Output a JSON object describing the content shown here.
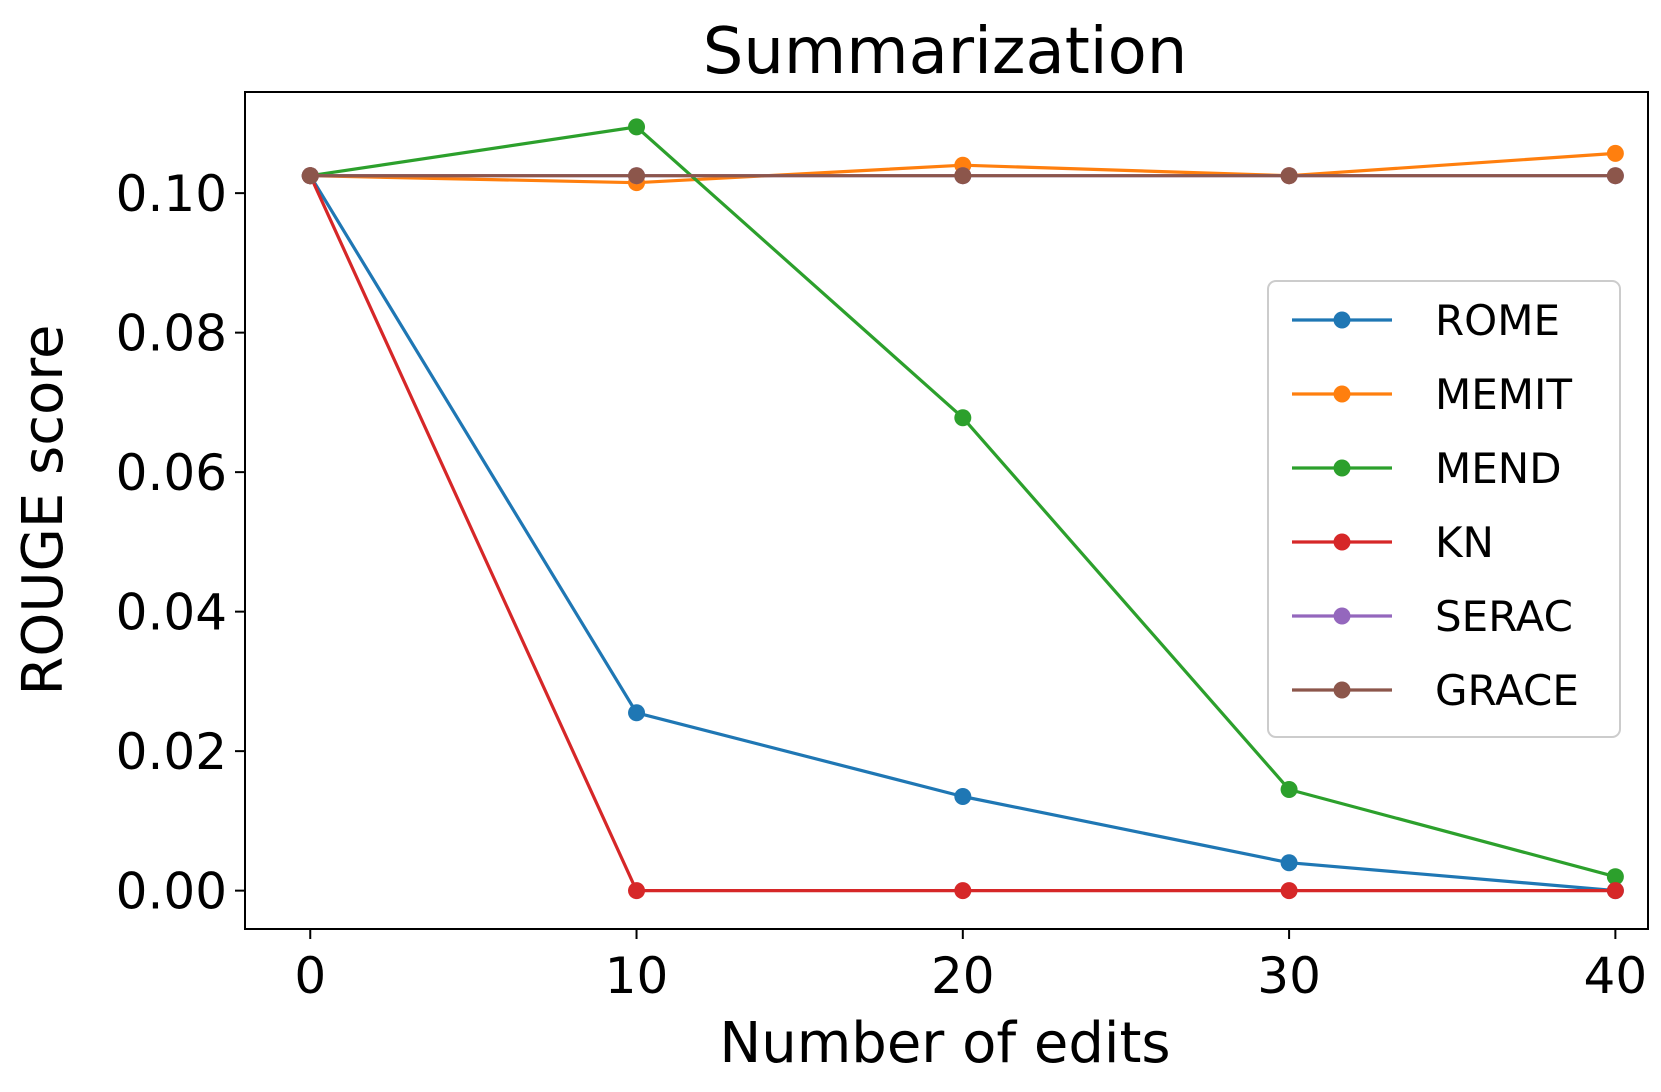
{
  "chart_data": {
    "type": "line",
    "title": "Summarization",
    "xlabel": "Number of edits",
    "ylabel": "ROUGE score",
    "x": [
      0,
      10,
      20,
      30,
      40
    ],
    "xlim": [
      -2,
      41
    ],
    "ylim": [
      -0.0055,
      0.1145
    ],
    "xticks": [
      0,
      10,
      20,
      30,
      40
    ],
    "xtick_labels": [
      "0",
      "10",
      "20",
      "30",
      "40"
    ],
    "yticks": [
      0.0,
      0.02,
      0.04,
      0.06,
      0.08,
      0.1
    ],
    "ytick_labels": [
      "0.00",
      "0.02",
      "0.04",
      "0.06",
      "0.08",
      "0.10"
    ],
    "grid": false,
    "legend_position": "center-right",
    "series": [
      {
        "name": "ROME",
        "color": "#1f77b4",
        "values": [
          0.1025,
          0.0255,
          0.0135,
          0.004,
          0.0
        ]
      },
      {
        "name": "MEMIT",
        "color": "#ff7f0e",
        "values": [
          0.1025,
          0.1015,
          0.104,
          0.1025,
          0.1057
        ]
      },
      {
        "name": "MEND",
        "color": "#2ca02c",
        "values": [
          0.1025,
          0.1095,
          0.0678,
          0.0145,
          0.002
        ]
      },
      {
        "name": "KN",
        "color": "#d62728",
        "values": [
          0.1025,
          0.0,
          0.0,
          0.0,
          0.0
        ]
      },
      {
        "name": "SERAC",
        "color": "#9467bd",
        "values": [
          0.1025,
          0.1025,
          0.1025,
          0.1025,
          0.1025
        ]
      },
      {
        "name": "GRACE",
        "color": "#8c564b",
        "values": [
          0.1025,
          0.1025,
          0.1025,
          0.1025,
          0.1025
        ]
      }
    ]
  }
}
